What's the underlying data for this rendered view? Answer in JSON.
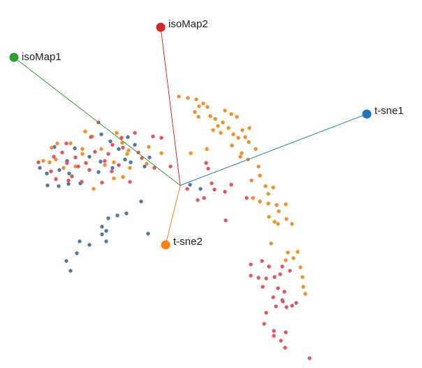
{
  "chart_data": {
    "type": "scatter",
    "title": "",
    "axes": [
      {
        "name": "isoMap1",
        "color": "#2ca02c",
        "direction": "up-left"
      },
      {
        "name": "isoMap2",
        "color": "#d62728",
        "direction": "up"
      },
      {
        "name": "t-sne1",
        "color": "#1f77b4",
        "direction": "right"
      },
      {
        "name": "t-sne2",
        "color": "#ff7f0e",
        "direction": "down"
      }
    ],
    "point_colors": {
      "blue": "#4e79a7",
      "orange": "#f28e2b",
      "red": "#e15759"
    },
    "series": [
      {
        "color": "blue",
        "points": [
          [
            145,
            192
          ],
          [
            183,
            196
          ],
          [
            158,
            202
          ],
          [
            193,
            207
          ],
          [
            170,
            213
          ],
          [
            107,
            212
          ],
          [
            78,
            210
          ],
          [
            128,
            224
          ],
          [
            96,
            230
          ],
          [
            144,
            231
          ],
          [
            179,
            228
          ],
          [
            187,
            232
          ],
          [
            214,
            225
          ],
          [
            57,
            240
          ],
          [
            85,
            243
          ],
          [
            99,
            248
          ],
          [
            141,
            246
          ],
          [
            161,
            240
          ],
          [
            207,
            238
          ],
          [
            67,
            248
          ],
          [
            98,
            263
          ],
          [
            84,
            266
          ],
          [
            68,
            265
          ],
          [
            115,
            262
          ],
          [
            272,
            264
          ],
          [
            287,
            270
          ],
          [
            202,
            288
          ],
          [
            181,
            305
          ],
          [
            168,
            308
          ],
          [
            155,
            312
          ],
          [
            152,
            330
          ],
          [
            146,
            335
          ],
          [
            152,
            345
          ],
          [
            128,
            350
          ],
          [
            110,
            362
          ],
          [
            95,
            373
          ],
          [
            212,
            334
          ],
          [
            101,
            387
          ],
          [
            114,
            345
          ],
          [
            146,
            324
          ]
        ]
      },
      {
        "color": "orange",
        "points": [
          [
            256,
            138
          ],
          [
            269,
            140
          ],
          [
            281,
            142
          ],
          [
            291,
            148
          ],
          [
            285,
            152
          ],
          [
            297,
            153
          ],
          [
            279,
            160
          ],
          [
            284,
            167
          ],
          [
            308,
            170
          ],
          [
            301,
            166
          ],
          [
            322,
            158
          ],
          [
            331,
            163
          ],
          [
            339,
            167
          ],
          [
            319,
            175
          ],
          [
            327,
            183
          ],
          [
            312,
            180
          ],
          [
            305,
            186
          ],
          [
            316,
            190
          ],
          [
            334,
            192
          ],
          [
            341,
            197
          ],
          [
            357,
            183
          ],
          [
            347,
            186
          ],
          [
            351,
            196
          ],
          [
            356,
            203
          ],
          [
            332,
            208
          ],
          [
            346,
            219
          ],
          [
            344,
            224
          ],
          [
            366,
            213
          ],
          [
            355,
            228
          ],
          [
            370,
            238
          ],
          [
            372,
            251
          ],
          [
            360,
            258
          ],
          [
            380,
            266
          ],
          [
            391,
            268
          ],
          [
            384,
            277
          ],
          [
            362,
            283
          ],
          [
            372,
            288
          ],
          [
            384,
            291
          ],
          [
            396,
            293
          ],
          [
            399,
            302
          ],
          [
            409,
            292
          ],
          [
            385,
            310
          ],
          [
            393,
            317
          ],
          [
            398,
            320
          ],
          [
            410,
            313
          ],
          [
            418,
            320
          ],
          [
            426,
            360
          ],
          [
            412,
            361
          ],
          [
            409,
            372
          ],
          [
            420,
            369
          ],
          [
            430,
            382
          ],
          [
            433,
            396
          ],
          [
            434,
            410
          ],
          [
            437,
            420
          ],
          [
            388,
            348
          ],
          [
            296,
            213
          ],
          [
            273,
            219
          ],
          [
            213,
            210
          ],
          [
            210,
            234
          ],
          [
            231,
            219
          ],
          [
            122,
            188
          ],
          [
            132,
            195
          ],
          [
            118,
            220
          ],
          [
            101,
            205
          ],
          [
            82,
            205
          ],
          [
            74,
            211
          ],
          [
            62,
            230
          ],
          [
            108,
            238
          ],
          [
            91,
            240
          ],
          [
            163,
            232
          ],
          [
            176,
            253
          ],
          [
            186,
            240
          ],
          [
            163,
            255
          ],
          [
            150,
            236
          ],
          [
            80,
            228
          ],
          [
            118,
            213
          ],
          [
            167,
            190
          ],
          [
            175,
            204
          ],
          [
            182,
            220
          ],
          [
            145,
            213
          ],
          [
            134,
            270
          ],
          [
            184,
            215
          ],
          [
            71,
            232
          ]
        ]
      },
      {
        "color": "red",
        "points": [
          [
            141,
            175
          ],
          [
            130,
            196
          ],
          [
            95,
            205
          ],
          [
            77,
            224
          ],
          [
            89,
            218
          ],
          [
            108,
            225
          ],
          [
            123,
            233
          ],
          [
            136,
            217
          ],
          [
            155,
            220
          ],
          [
            170,
            236
          ],
          [
            160,
            245
          ],
          [
            128,
            243
          ],
          [
            112,
            238
          ],
          [
            96,
            233
          ],
          [
            73,
            245
          ],
          [
            55,
            232
          ],
          [
            80,
            256
          ],
          [
            98,
            258
          ],
          [
            103,
            252
          ],
          [
            117,
            260
          ],
          [
            174,
            197
          ],
          [
            193,
            190
          ],
          [
            219,
            195
          ],
          [
            231,
            197
          ],
          [
            198,
            218
          ],
          [
            221,
            240
          ],
          [
            244,
            238
          ],
          [
            295,
            233
          ],
          [
            303,
            262
          ],
          [
            298,
            241
          ],
          [
            307,
            271
          ],
          [
            283,
            286
          ],
          [
            268,
            270
          ],
          [
            292,
            283
          ],
          [
            322,
            274
          ],
          [
            331,
            264
          ],
          [
            353,
            283
          ],
          [
            323,
            315
          ],
          [
            359,
            378
          ],
          [
            359,
            394
          ],
          [
            375,
            373
          ],
          [
            385,
            381
          ],
          [
            370,
            397
          ],
          [
            381,
            398
          ],
          [
            393,
            396
          ],
          [
            401,
            392
          ],
          [
            376,
            410
          ],
          [
            398,
            412
          ],
          [
            391,
            425
          ],
          [
            407,
            417
          ],
          [
            405,
            431
          ],
          [
            410,
            439
          ],
          [
            395,
            438
          ],
          [
            404,
            429
          ],
          [
            418,
            437
          ],
          [
            424,
            433
          ],
          [
            415,
            387
          ],
          [
            404,
            381
          ],
          [
            381,
            447
          ],
          [
            378,
            463
          ],
          [
            392,
            473
          ],
          [
            409,
            475
          ],
          [
            402,
            487
          ],
          [
            392,
            480
          ],
          [
            408,
            497
          ],
          [
            443,
            512
          ],
          [
            146,
            261
          ],
          [
            161,
            207
          ],
          [
            176,
            211
          ],
          [
            203,
            226
          ],
          [
            186,
            260
          ],
          [
            150,
            230
          ]
        ]
      }
    ]
  }
}
